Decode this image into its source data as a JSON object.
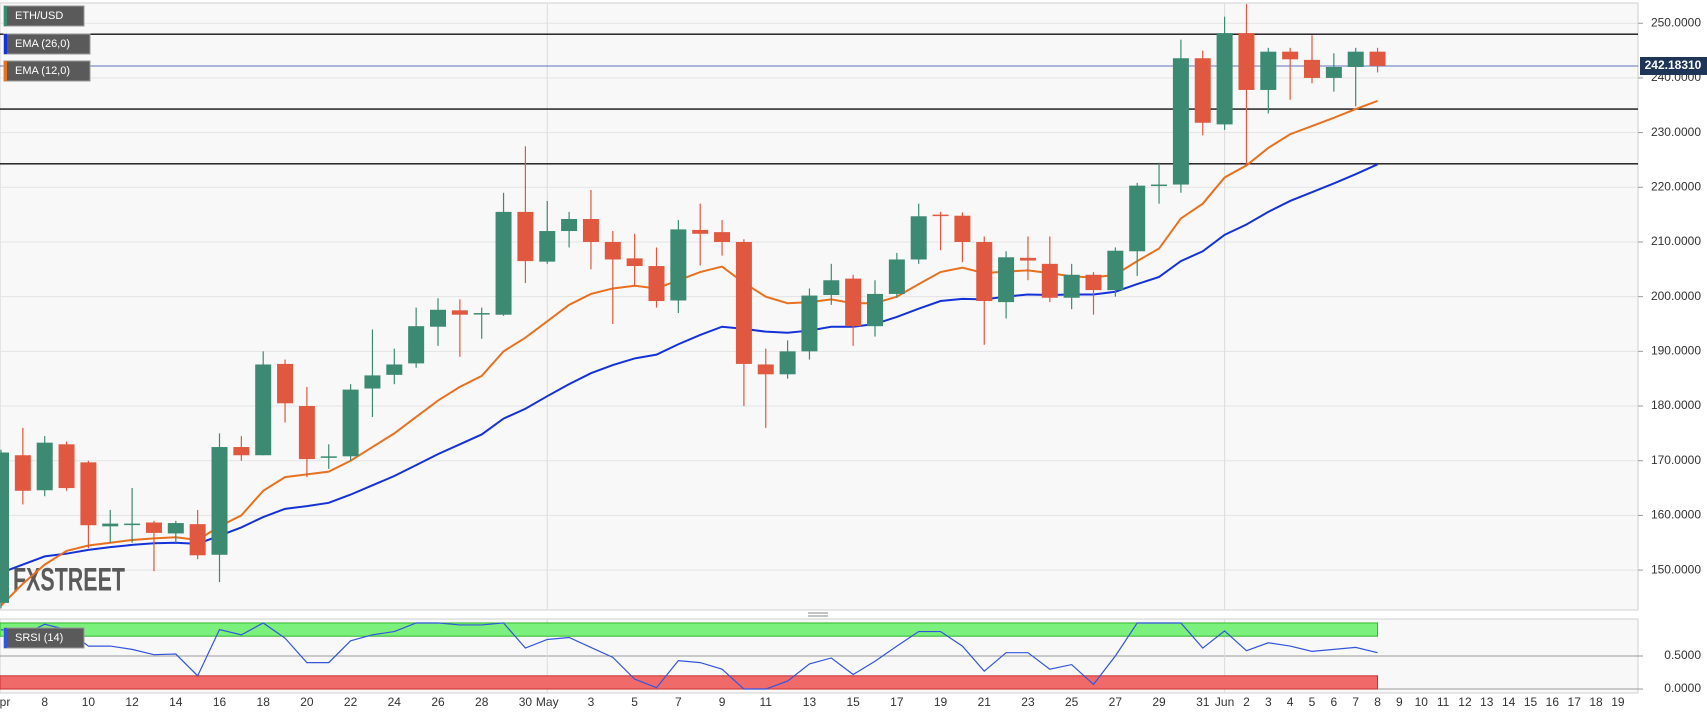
{
  "chart_data": [
    {
      "type": "candlestick",
      "title": "ETH/USD",
      "watermark": "FXSTREET",
      "grid": true,
      "categories": [
        "Apr",
        null,
        "8",
        null,
        "10",
        null,
        "12",
        null,
        "14",
        null,
        "16",
        null,
        "18",
        null,
        "20",
        null,
        "22",
        null,
        "24",
        null,
        "26",
        null,
        "28",
        null,
        "30",
        "May",
        null,
        "3",
        null,
        "5",
        null,
        "7",
        null,
        "9",
        null,
        "11",
        null,
        "13",
        null,
        "15",
        null,
        "17",
        null,
        "19",
        null,
        "21",
        null,
        "23",
        null,
        "25",
        null,
        "27",
        null,
        "29",
        null,
        "31",
        "Jun",
        "2",
        "3",
        "4",
        "5",
        "6",
        "7",
        "8",
        "9",
        "10",
        "11",
        "12",
        "13",
        "14",
        "15",
        "16",
        "17",
        "18",
        "19"
      ],
      "open": [
        144,
        171,
        164.6,
        173,
        169.7,
        158,
        158.3,
        158.7,
        156.7,
        158.4,
        152.8,
        172.5,
        171,
        187.7,
        180,
        170.6,
        170.8,
        183.2,
        185.7,
        187.8,
        194.5,
        197.5,
        197,
        196.7,
        215.5,
        206.4,
        212,
        214.2,
        210,
        207,
        205.6,
        199.3,
        212.2,
        211.8,
        210,
        187.6,
        185.8,
        190,
        200.3,
        203.3,
        194.6,
        200.5,
        206.8,
        215,
        214.8,
        210,
        199,
        207.1,
        206,
        199.8,
        204,
        201.2,
        208.3,
        220.3,
        220.5,
        243.6,
        231.5,
        248.2,
        237.8,
        244.8,
        243.3,
        240,
        242,
        244.8,
        null,
        null,
        null,
        null,
        null,
        null,
        null,
        null,
        null,
        null,
        null
      ],
      "high": [
        172,
        176,
        174.5,
        173.5,
        170,
        161,
        165,
        159,
        159,
        161,
        175,
        174.5,
        190,
        188.5,
        183.5,
        173,
        184,
        194,
        190.5,
        198,
        199.7,
        199.5,
        198,
        219,
        227.5,
        217.5,
        215.5,
        219.5,
        212,
        211.5,
        209,
        214,
        217,
        214,
        210.5,
        190.5,
        192,
        201.5,
        206,
        204,
        203,
        208,
        217,
        215.5,
        215.4,
        211,
        208.3,
        211,
        211,
        206,
        204.5,
        209,
        220.8,
        224.5,
        247,
        245,
        251.2,
        253.5,
        245.5,
        245.5,
        247.8,
        244.5,
        245.5,
        245.5,
        null,
        null,
        null,
        null,
        null,
        null,
        null,
        null,
        null,
        null,
        null
      ],
      "low": [
        143,
        162,
        163.5,
        164.5,
        154,
        155,
        155,
        149.8,
        155,
        152,
        147.8,
        170,
        171,
        177,
        167,
        168.5,
        170,
        178,
        184,
        187,
        191,
        189,
        192.3,
        196.5,
        202.5,
        206,
        209,
        205,
        195,
        202,
        198,
        197,
        205.7,
        207.5,
        180,
        176,
        185,
        188.5,
        198.5,
        191,
        192.7,
        199.8,
        206,
        208.5,
        206.3,
        191.2,
        196,
        203,
        199,
        197.7,
        196.7,
        200,
        203.8,
        217,
        219,
        229.5,
        230.5,
        224,
        233.5,
        236,
        239,
        237.5,
        234.8,
        241,
        null,
        null,
        null,
        null,
        null,
        null,
        null,
        null,
        null,
        null,
        null
      ],
      "close": [
        171.5,
        164.5,
        173.3,
        165,
        158.2,
        158.5,
        158.5,
        156.8,
        158.6,
        152.7,
        172.5,
        171,
        187.6,
        180.5,
        170.3,
        170.8,
        183,
        185.6,
        187.6,
        194.6,
        197.6,
        196.7,
        197,
        215.5,
        206.5,
        212,
        214.2,
        210,
        206.8,
        205.6,
        199.2,
        212.3,
        211.5,
        210,
        187.7,
        185.8,
        190,
        200.2,
        203,
        194.6,
        200.5,
        206.8,
        214.7,
        214.9,
        210,
        199.2,
        207.2,
        206.6,
        199.8,
        204,
        201.2,
        208.4,
        220.3,
        220.5,
        243.6,
        231.8,
        248.2,
        237.8,
        244.8,
        243.4,
        240,
        242,
        244.8,
        242.2,
        null,
        null,
        null,
        null,
        null,
        null,
        null,
        null,
        null,
        null,
        null
      ],
      "up_color": "#3c8a72",
      "down_color": "#e0583f",
      "series": [
        {
          "name": "EMA (26,0)",
          "color": "#1432d8",
          "values": [
            149.5,
            151,
            152.5,
            153,
            153.7,
            154.2,
            154.6,
            154.9,
            155,
            154.8,
            156.3,
            157.8,
            159.7,
            161.2,
            161.7,
            162.3,
            163.8,
            165.5,
            167.2,
            169.2,
            171.2,
            173,
            174.8,
            177.7,
            179.5,
            181.8,
            184,
            186,
            187.5,
            188.7,
            189.4,
            191.3,
            193,
            194.5,
            194.1,
            193.6,
            193.4,
            193.8,
            194.5,
            194.5,
            195,
            196.3,
            197.8,
            199.2,
            199.6,
            199.5,
            200,
            200.4,
            200.3,
            200.4,
            200.4,
            200.9,
            202.3,
            203.6,
            206.5,
            208.3,
            211.3,
            213.2,
            215.5,
            217.5,
            219.1,
            220.7,
            222.4,
            224.2,
            null,
            null,
            null,
            null,
            null,
            null,
            null,
            null,
            null,
            null,
            null
          ]
        },
        {
          "name": "EMA (12,0)",
          "color": "#e8711f",
          "values": [
            143.5,
            147.5,
            151,
            153.5,
            154.5,
            155,
            155.5,
            155.8,
            156,
            155.5,
            158,
            160,
            164.5,
            167,
            167.5,
            168,
            170,
            172.5,
            175,
            178,
            181,
            183.5,
            185.5,
            190,
            192.5,
            195.5,
            198.5,
            200.5,
            201.5,
            202,
            201.5,
            203,
            204.5,
            205.5,
            202.5,
            200,
            198.8,
            199,
            199.5,
            198.8,
            198.8,
            200,
            202.3,
            204.5,
            205.3,
            204.3,
            204.6,
            204.8,
            204.3,
            203.7,
            203.5,
            204,
            206.5,
            208.8,
            214.3,
            217,
            221.8,
            224,
            227.2,
            229.7,
            231.2,
            232.7,
            234.3,
            235.8,
            null,
            null,
            null,
            null,
            null,
            null,
            null,
            null,
            null,
            null,
            null
          ]
        }
      ],
      "levels": [
        248,
        234.3,
        224.3
      ],
      "last_price": {
        "value": 242.1831,
        "label": "242.18310"
      },
      "ylim": [
        142.7,
        253.7
      ],
      "yticks": [
        {
          "value": 150,
          "label": "150.0000"
        },
        {
          "value": 160,
          "label": "160.0000"
        },
        {
          "value": 170,
          "label": "170.0000"
        },
        {
          "value": 180,
          "label": "180.0000"
        },
        {
          "value": 190,
          "label": "190.0000"
        },
        {
          "value": 200,
          "label": "200.0000"
        },
        {
          "value": 210,
          "label": "210.0000"
        },
        {
          "value": 220,
          "label": "220.0000"
        },
        {
          "value": 230,
          "label": "230.0000"
        },
        {
          "value": 240,
          "label": "240.0000"
        },
        {
          "value": 250,
          "label": "250.0000"
        }
      ]
    },
    {
      "type": "line",
      "series": [
        {
          "name": "SRSI (14)",
          "color": "#3355dd",
          "values": [
            0.9,
            0.82,
            0.98,
            0.9,
            0.65,
            0.65,
            0.6,
            0.52,
            0.53,
            0.2,
            0.9,
            0.82,
            1,
            0.77,
            0.4,
            0.4,
            0.73,
            0.82,
            0.87,
            1,
            1,
            0.97,
            0.97,
            1,
            0.62,
            0.75,
            0.78,
            0.63,
            0.48,
            0.15,
            0.02,
            0.43,
            0.4,
            0.3,
            0,
            0,
            0.12,
            0.38,
            0.47,
            0.22,
            0.42,
            0.65,
            0.87,
            0.87,
            0.65,
            0.27,
            0.55,
            0.55,
            0.3,
            0.37,
            0.07,
            0.5,
            1,
            1,
            1,
            0.62,
            0.88,
            0.58,
            0.7,
            0.65,
            0.57,
            0.6,
            0.63,
            0.55,
            null,
            null,
            null,
            null,
            null,
            null,
            null,
            null,
            null,
            null,
            null
          ]
        }
      ],
      "upper_band": [
        0.8,
        1
      ],
      "lower_band": [
        0,
        0.2
      ],
      "ylim": [
        -0.06,
        1.06
      ],
      "yticks": [
        {
          "value": 0,
          "label": "0.0000"
        },
        {
          "value": 0.5,
          "label": "0.5000"
        }
      ]
    }
  ]
}
